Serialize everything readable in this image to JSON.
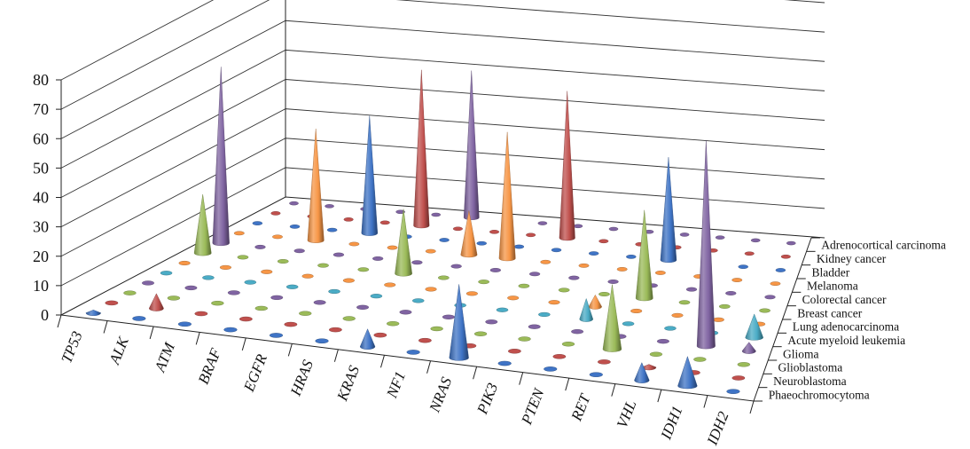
{
  "chart_data": {
    "type": "3d-cone",
    "title": "",
    "ylim": [
      0,
      80
    ],
    "yticks": [
      "0",
      "10",
      "20",
      "30",
      "40",
      "50",
      "60",
      "70",
      "80"
    ],
    "grid": true,
    "categories": [
      "TP53",
      "ALK",
      "ATM",
      "BRAF",
      "EGFR",
      "HRAS",
      "KRAS",
      "NF1",
      "NRAS",
      "PIK3",
      "PTEN",
      "RET",
      "VHL",
      "IDH1",
      "IDH2"
    ],
    "series": [
      {
        "name": "Phaeochromocytoma",
        "color": "#3f74c6",
        "values": [
          1,
          0,
          0,
          0,
          0,
          0,
          6,
          0,
          25,
          0,
          0,
          0,
          6,
          10,
          0
        ]
      },
      {
        "name": "Neuroblastoma",
        "color": "#c0504d",
        "values": [
          0,
          5,
          0,
          0,
          0,
          0,
          0,
          0,
          0,
          0,
          0,
          0,
          1,
          0,
          0
        ]
      },
      {
        "name": "Glioblastoma",
        "color": "#9bbb59",
        "values": [
          0,
          0,
          0,
          0,
          0,
          0,
          0,
          0,
          0,
          0,
          0,
          22,
          0,
          0,
          0
        ]
      },
      {
        "name": "Glioma",
        "color": "#8064a2",
        "values": [
          0,
          0,
          0,
          0,
          0,
          0,
          0,
          0,
          0,
          0,
          0,
          0,
          0,
          70,
          3
        ]
      },
      {
        "name": "Acute myeloid leukemia",
        "color": "#4bacc6",
        "values": [
          0,
          0,
          0,
          0,
          0,
          0,
          0,
          0,
          0,
          0,
          7,
          0,
          0,
          0,
          8
        ]
      },
      {
        "name": "Lung adenocarcinoma",
        "color": "#f79646",
        "values": [
          0,
          0,
          0,
          0,
          0,
          0,
          0,
          0,
          0,
          0,
          4,
          0,
          0,
          0,
          0
        ]
      },
      {
        "name": "Breast cancer",
        "color": "#9bbb59",
        "values": [
          20,
          0,
          0,
          0,
          0,
          22,
          0,
          0,
          0,
          0,
          0,
          30,
          0,
          0,
          0
        ]
      },
      {
        "name": "Colorectal cancer",
        "color": "#8064a2",
        "values": [
          60,
          0,
          0,
          0,
          0,
          0,
          0,
          0,
          0,
          0,
          0,
          0,
          0,
          0,
          0
        ]
      },
      {
        "name": "Melanoma",
        "color": "#f79646",
        "values": [
          0,
          0,
          38,
          0,
          0,
          0,
          15,
          43,
          0,
          0,
          0,
          0,
          0,
          0,
          0
        ]
      },
      {
        "name": "Bladder",
        "color": "#3f74c6",
        "values": [
          0,
          0,
          0,
          40,
          0,
          0,
          0,
          0,
          0,
          0,
          0,
          35,
          0,
          0,
          0
        ]
      },
      {
        "name": "Kidney cancer",
        "color": "#c0504d",
        "values": [
          0,
          0,
          0,
          0,
          53,
          0,
          0,
          0,
          50,
          0,
          0,
          0,
          0,
          0,
          0
        ]
      },
      {
        "name": "Adrenocortical carcinoma",
        "color": "#8064a2",
        "values": [
          0,
          0,
          0,
          0,
          0,
          50,
          0,
          0,
          0,
          0,
          0,
          0,
          0,
          0,
          0
        ]
      }
    ]
  }
}
